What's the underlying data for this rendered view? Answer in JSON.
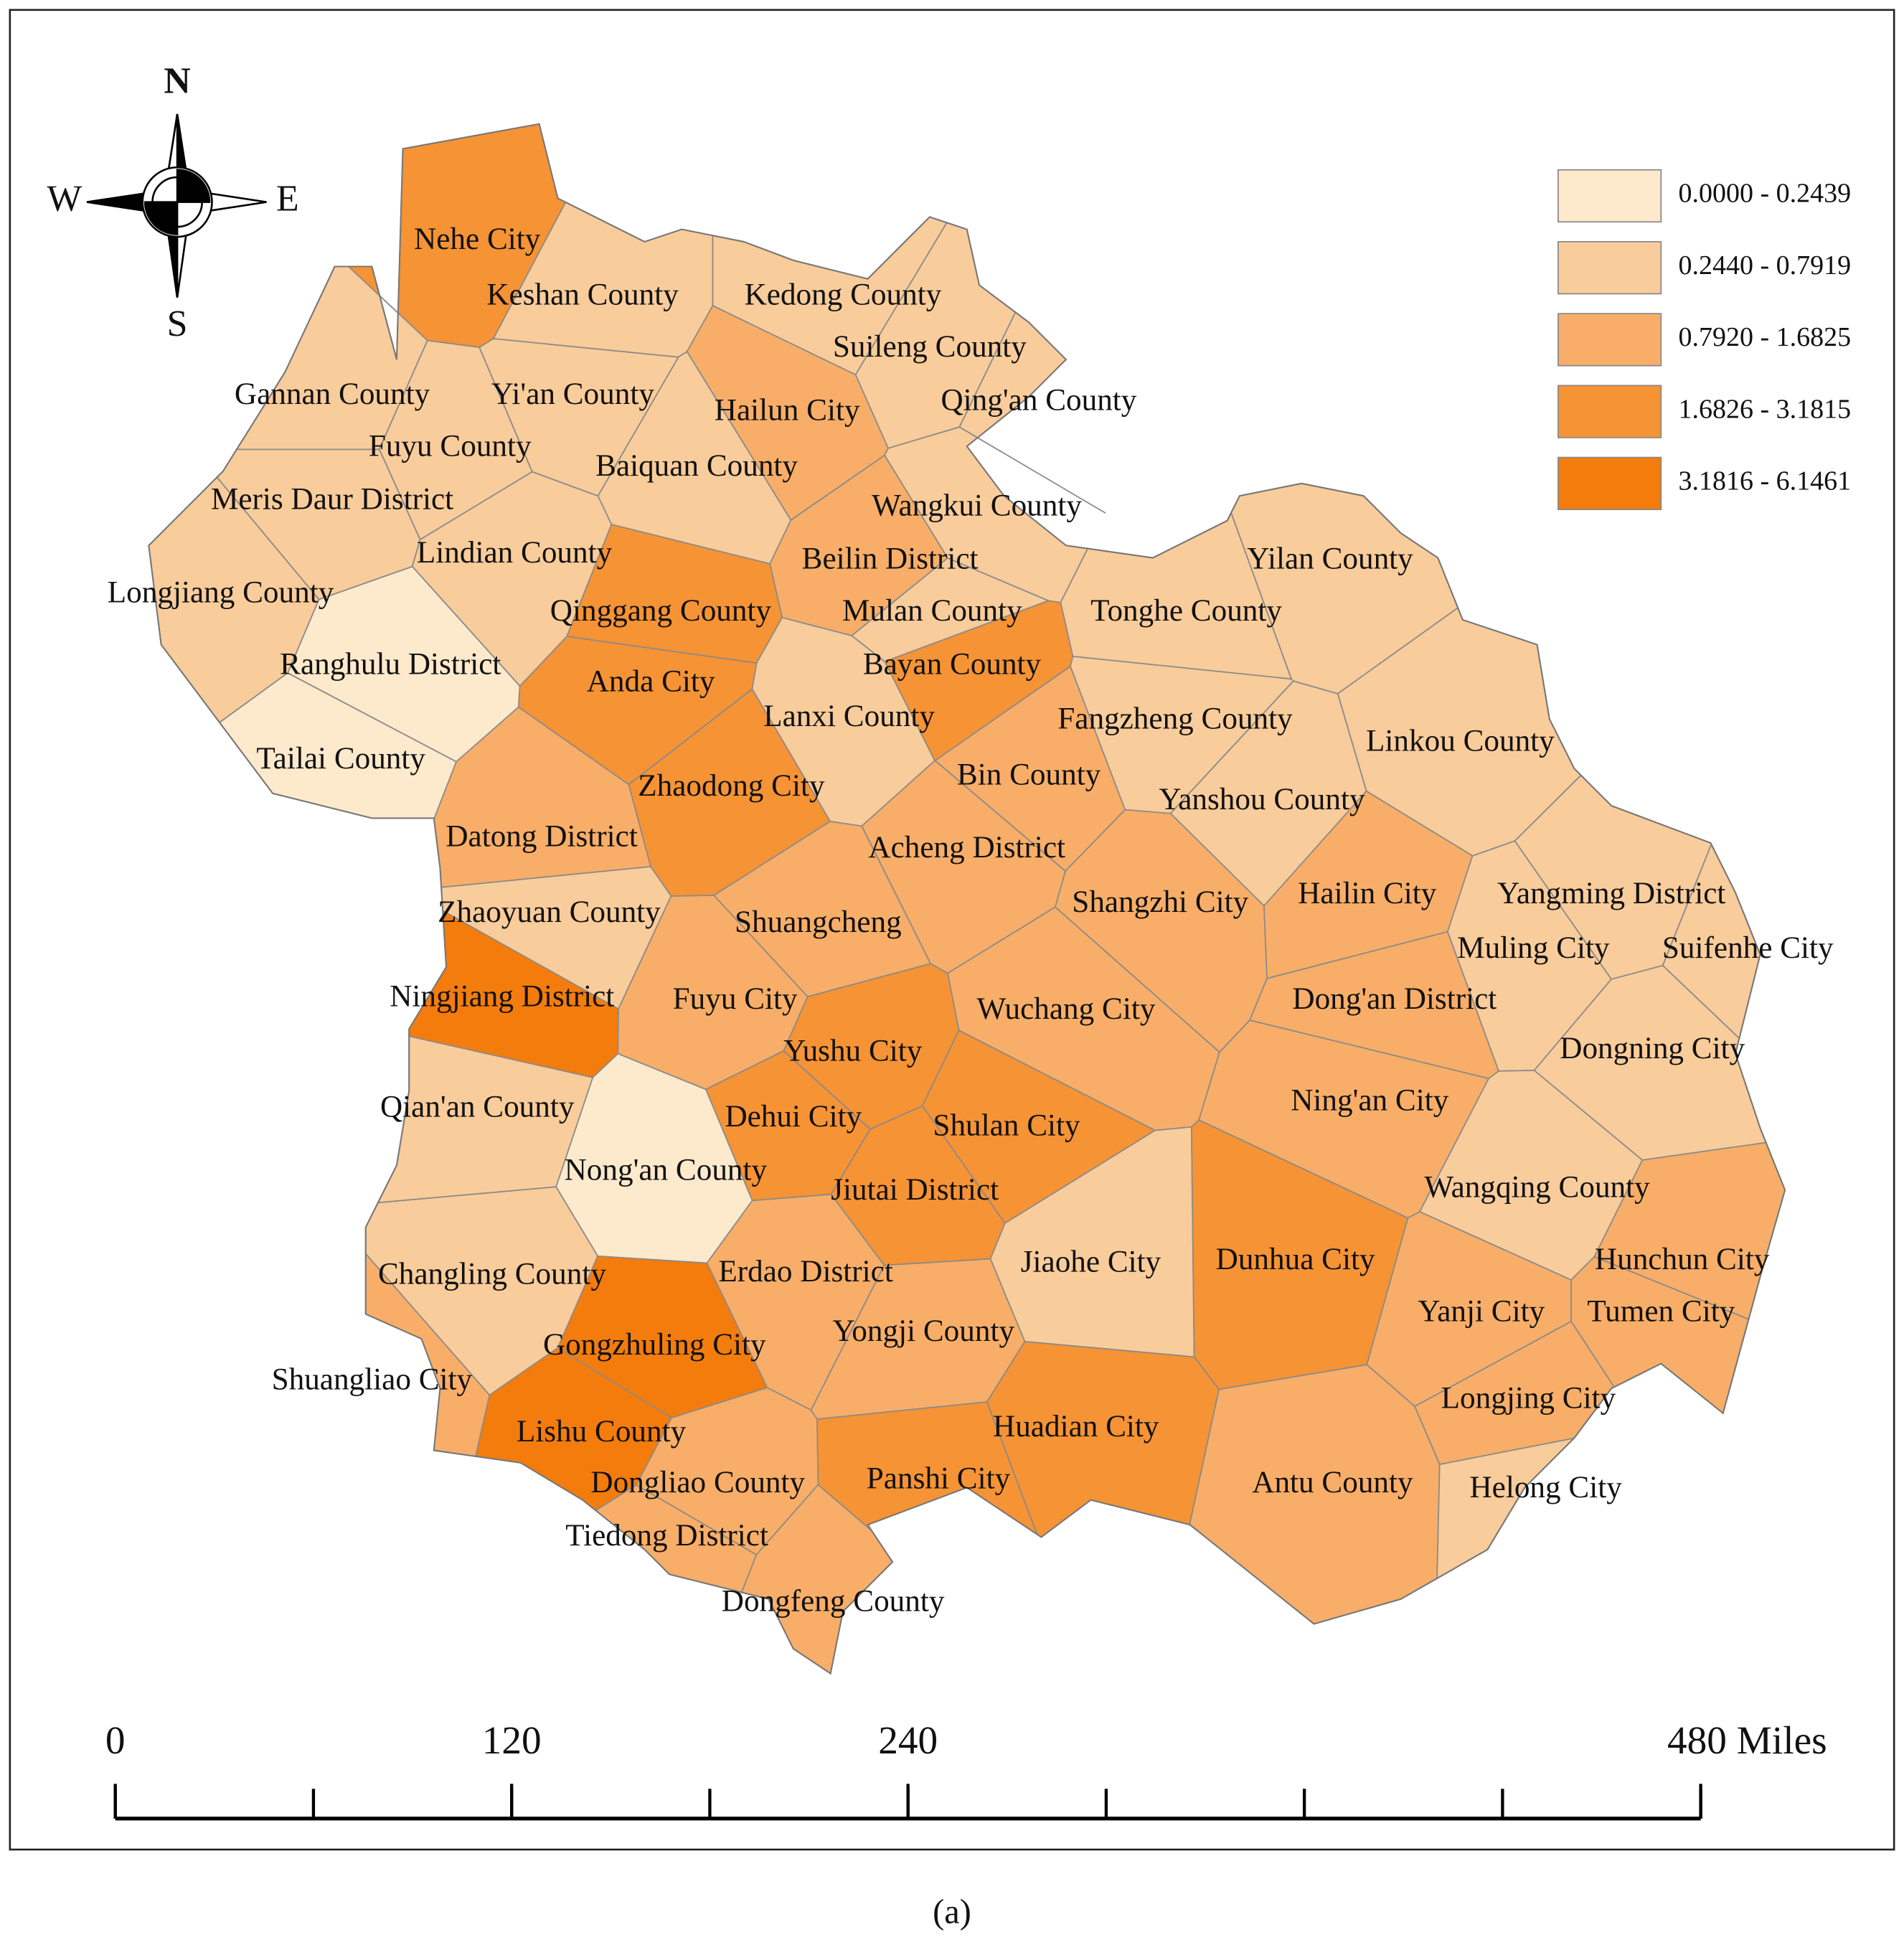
{
  "map": {
    "compass": {
      "north": "N",
      "east": "E",
      "south": "S",
      "west": "W"
    },
    "legend": [
      {
        "label": "0.0000 - 0.2439",
        "color": "#fde9cc"
      },
      {
        "label": "0.2440 - 0.7919",
        "color": "#f9cc9b"
      },
      {
        "label": "0.7920 - 1.6825",
        "color": "#f8ae68"
      },
      {
        "label": "1.6826 - 3.1815",
        "color": "#f69335"
      },
      {
        "label": "3.1816 - 6.1461",
        "color": "#f47c0c"
      }
    ],
    "regions": [
      {
        "name": "Nehe City",
        "color": "#f69335"
      },
      {
        "name": "Keshan County",
        "color": "#f9cc9b"
      },
      {
        "name": "Kedong County",
        "color": "#f9cc9b"
      },
      {
        "name": "Suileng County",
        "color": "#f9cc9b"
      },
      {
        "name": "Gannan County",
        "color": "#f9cc9b"
      },
      {
        "name": "Yi'an County",
        "color": "#f9cc9b"
      },
      {
        "name": "Hailun City",
        "color": "#f8ae68"
      },
      {
        "name": "Qing'an County",
        "color": "#f9cc9b"
      },
      {
        "name": "Fuyu County",
        "color": "#f9cc9b"
      },
      {
        "name": "Baiquan County",
        "color": "#f9cc9b"
      },
      {
        "name": "Meris Daur District",
        "color": "#f9cc9b"
      },
      {
        "name": "Wangkui County",
        "color": "#f9cc9b"
      },
      {
        "name": "Lindian County",
        "color": "#f9cc9b"
      },
      {
        "name": "Beilin District",
        "color": "#f8ae68"
      },
      {
        "name": "Yilan County",
        "color": "#f9cc9b"
      },
      {
        "name": "Longjiang County",
        "color": "#f9cc9b"
      },
      {
        "name": "Qinggang County",
        "color": "#f69335"
      },
      {
        "name": "Mulan County",
        "color": "#f9cc9b"
      },
      {
        "name": "Tonghe County",
        "color": "#f9cc9b"
      },
      {
        "name": "Ranghulu District",
        "color": "#fde9cc"
      },
      {
        "name": "Anda City",
        "color": "#f69335"
      },
      {
        "name": "Bayan County",
        "color": "#f69335"
      },
      {
        "name": "Lanxi County",
        "color": "#f9cc9b"
      },
      {
        "name": "Fangzheng County",
        "color": "#f9cc9b"
      },
      {
        "name": "Linkou County",
        "color": "#f9cc9b"
      },
      {
        "name": "Tailai County",
        "color": "#fde9cc"
      },
      {
        "name": "Zhaodong City",
        "color": "#f69335"
      },
      {
        "name": "Bin County",
        "color": "#f8ae68"
      },
      {
        "name": "Yanshou County",
        "color": "#f9cc9b"
      },
      {
        "name": "Datong District",
        "color": "#f8ae68"
      },
      {
        "name": "Acheng District",
        "color": "#f8ae68"
      },
      {
        "name": "Zhaoyuan County",
        "color": "#f9cc9b"
      },
      {
        "name": "Shuangcheng",
        "color": "#f8ae68"
      },
      {
        "name": "Shangzhi City",
        "color": "#f8ae68"
      },
      {
        "name": "Hailin City",
        "color": "#f8ae68"
      },
      {
        "name": "Yangming District",
        "color": "#f9cc9b"
      },
      {
        "name": "Muling City",
        "color": "#f9cc9b"
      },
      {
        "name": "Suifenhe City",
        "color": "#f9cc9b"
      },
      {
        "name": "Ningjiang District",
        "color": "#f47c0c"
      },
      {
        "name": "Fuyu City",
        "color": "#f8ae68"
      },
      {
        "name": "Wuchang City",
        "color": "#f8ae68"
      },
      {
        "name": "Dong'an District",
        "color": "#f8ae68"
      },
      {
        "name": "Yushu City",
        "color": "#f69335"
      },
      {
        "name": "Dongning City",
        "color": "#f9cc9b"
      },
      {
        "name": "Qian'an County",
        "color": "#f9cc9b"
      },
      {
        "name": "Ning'an City",
        "color": "#f8ae68"
      },
      {
        "name": "Dehui City",
        "color": "#f69335"
      },
      {
        "name": "Shulan City",
        "color": "#f69335"
      },
      {
        "name": "Nong'an County",
        "color": "#fde9cc"
      },
      {
        "name": "Jiutai District",
        "color": "#f69335"
      },
      {
        "name": "Wangqing County",
        "color": "#f9cc9b"
      },
      {
        "name": "Changling County",
        "color": "#f9cc9b"
      },
      {
        "name": "Erdao District",
        "color": "#f8ae68"
      },
      {
        "name": "Jiaohe City",
        "color": "#f9cc9b"
      },
      {
        "name": "Dunhua City",
        "color": "#f69335"
      },
      {
        "name": "Hunchun City",
        "color": "#f8ae68"
      },
      {
        "name": "Gongzhuling City",
        "color": "#f47c0c"
      },
      {
        "name": "Yongji County",
        "color": "#f8ae68"
      },
      {
        "name": "Yanji City",
        "color": "#f8ae68"
      },
      {
        "name": "Tumen City",
        "color": "#f8ae68"
      },
      {
        "name": "Shuangliao City",
        "color": "#f8ae68"
      },
      {
        "name": "Longjing City",
        "color": "#f8ae68"
      },
      {
        "name": "Lishu County",
        "color": "#f47c0c"
      },
      {
        "name": "Huadian City",
        "color": "#f69335"
      },
      {
        "name": "Dongliao County",
        "color": "#f8ae68"
      },
      {
        "name": "Panshi City",
        "color": "#f69335"
      },
      {
        "name": "Antu County",
        "color": "#f8ae68"
      },
      {
        "name": "Helong City",
        "color": "#f9cc9b"
      },
      {
        "name": "Tiedong District",
        "color": "#f8ae68"
      },
      {
        "name": "Dongfeng County",
        "color": "#f8ae68"
      }
    ],
    "scale_bar": {
      "xlim": [
        0,
        480
      ],
      "xticks": [
        0,
        120,
        240,
        {
          "value": 480,
          "label": "480 Miles"
        }
      ]
    },
    "caption": "(a)"
  }
}
